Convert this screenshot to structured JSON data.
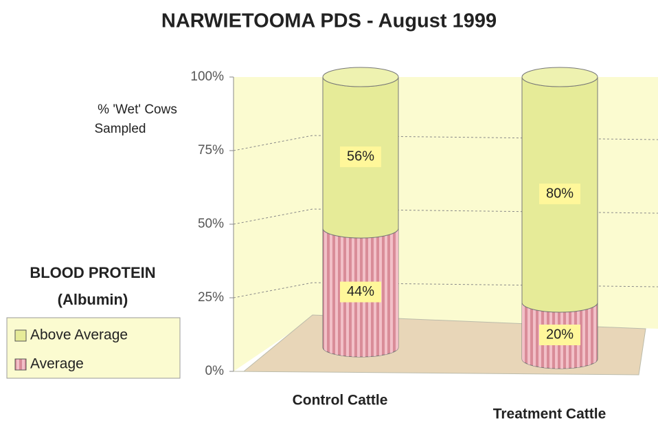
{
  "chart_data": {
    "type": "bar",
    "stacked": true,
    "title": "NARWIETOOMA PDS - August 1999",
    "y_label": [
      "% 'Wet' Cows",
      "Sampled"
    ],
    "legend_title": [
      "BLOOD PROTEIN",
      "(Albumin)"
    ],
    "categories": [
      "Control Cattle",
      "Treatment Cattle"
    ],
    "series": [
      {
        "name": "Average",
        "color": "#d98c98",
        "values": [
          44,
          20
        ],
        "value_labels": [
          "44%",
          "20%"
        ]
      },
      {
        "name": "Above Average",
        "color": "#e6eb98",
        "values": [
          56,
          80
        ],
        "value_labels": [
          "56%",
          "80%"
        ]
      }
    ],
    "ylim": [
      0,
      100
    ],
    "yticks": [
      {
        "value": 0,
        "label": "0%"
      },
      {
        "value": 25,
        "label": "25%"
      },
      {
        "value": 50,
        "label": "50%"
      },
      {
        "value": 75,
        "label": "75%"
      },
      {
        "value": 100,
        "label": "100%"
      }
    ],
    "grid": true
  }
}
